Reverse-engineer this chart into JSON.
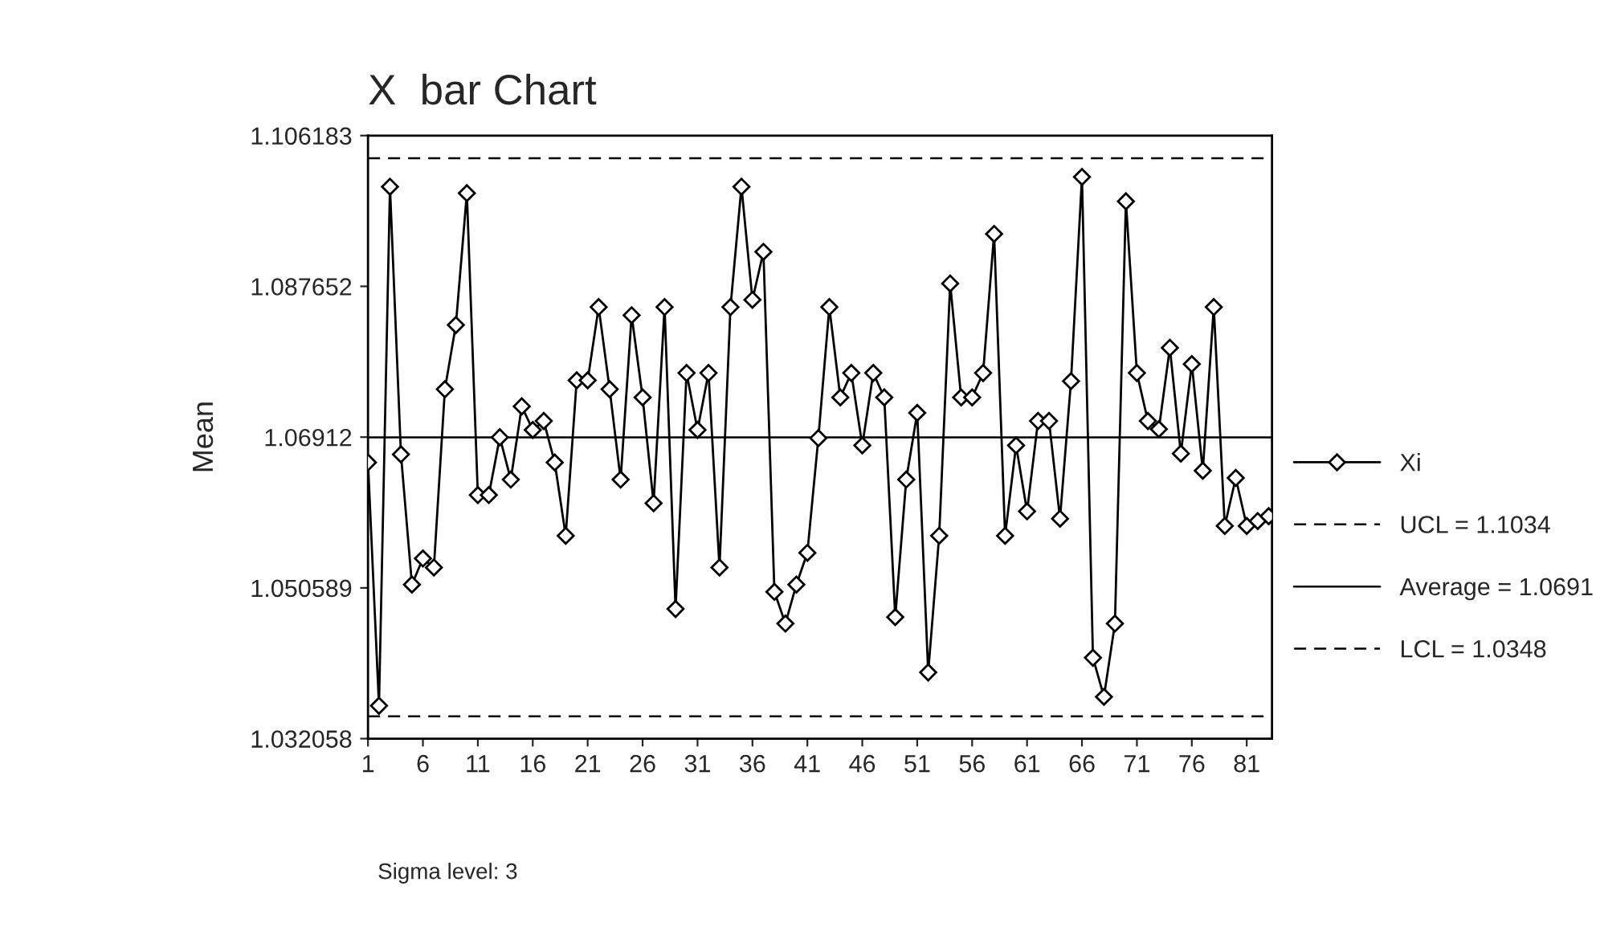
{
  "chart_data": {
    "type": "line",
    "title": "X  bar Chart",
    "ylabel": "Mean",
    "annotations": [
      "Sigma level: 3"
    ],
    "x": [
      1,
      2,
      3,
      4,
      5,
      6,
      7,
      8,
      9,
      10,
      11,
      12,
      13,
      14,
      15,
      16,
      17,
      18,
      19,
      20,
      21,
      22,
      23,
      24,
      25,
      26,
      27,
      28,
      29,
      30,
      31,
      32,
      33,
      34,
      35,
      36,
      37,
      38,
      39,
      40,
      41,
      42,
      43,
      44,
      45,
      46,
      47,
      48,
      49,
      50,
      51,
      52,
      53,
      54,
      55,
      56,
      57,
      58,
      59,
      60,
      61,
      62,
      63,
      64,
      65,
      66,
      67,
      68,
      69,
      70,
      71,
      72,
      73,
      74,
      75,
      76,
      77,
      78,
      79,
      80,
      81,
      82,
      83
    ],
    "series": [
      {
        "name": "Xi",
        "color": "#000000",
        "values": [
          1.066,
          1.0361,
          1.0999,
          1.067,
          1.051,
          1.0542,
          1.0531,
          1.075,
          1.0829,
          1.0991,
          1.062,
          1.062,
          1.0691,
          1.0639,
          1.0729,
          1.07,
          1.0711,
          1.066,
          1.057,
          1.0761,
          1.0761,
          1.0851,
          1.075,
          1.0639,
          1.0841,
          1.074,
          1.061,
          1.0851,
          1.048,
          1.077,
          1.07,
          1.077,
          1.0531,
          1.0851,
          1.0999,
          1.086,
          1.0919,
          1.0501,
          1.0462,
          1.051,
          1.0549,
          1.069,
          1.0851,
          1.074,
          1.077,
          1.0681,
          1.077,
          1.074,
          1.047,
          1.0639,
          1.0721,
          1.0402,
          1.057,
          1.088,
          1.074,
          1.074,
          1.077,
          1.0941,
          1.057,
          1.0681,
          1.06,
          1.0711,
          1.0711,
          1.0591,
          1.076,
          1.1011,
          1.042,
          1.0372,
          1.0462,
          1.0981,
          1.077,
          1.0711,
          1.0701,
          1.0801,
          1.0671,
          1.0781,
          1.065,
          1.0851,
          1.0582,
          1.0641,
          1.0582,
          1.0588,
          1.0594
        ]
      }
    ],
    "marker": "diamond",
    "line_style": "solid",
    "ref_lines": [
      {
        "axis": "y",
        "value": 1.1034,
        "label": "UCL = 1.1034",
        "line_style": "dashed",
        "color": "#000000"
      },
      {
        "axis": "y",
        "value": 1.0691,
        "label": "Average = 1.0691",
        "line_style": "solid",
        "color": "#000000"
      },
      {
        "axis": "y",
        "value": 1.0348,
        "label": "LCL = 1.0348",
        "line_style": "dashed",
        "color": "#000000"
      }
    ],
    "xlim": [
      1,
      83.3
    ],
    "xticks": [
      1,
      6,
      11,
      16,
      21,
      26,
      31,
      36,
      41,
      46,
      51,
      56,
      61,
      66,
      71,
      76,
      81
    ],
    "ylim": [
      1.032058,
      1.106183
    ],
    "yticks": [
      1.032058,
      1.050589,
      1.06912,
      1.087652,
      1.106183
    ],
    "grid": false,
    "legend": "right"
  }
}
